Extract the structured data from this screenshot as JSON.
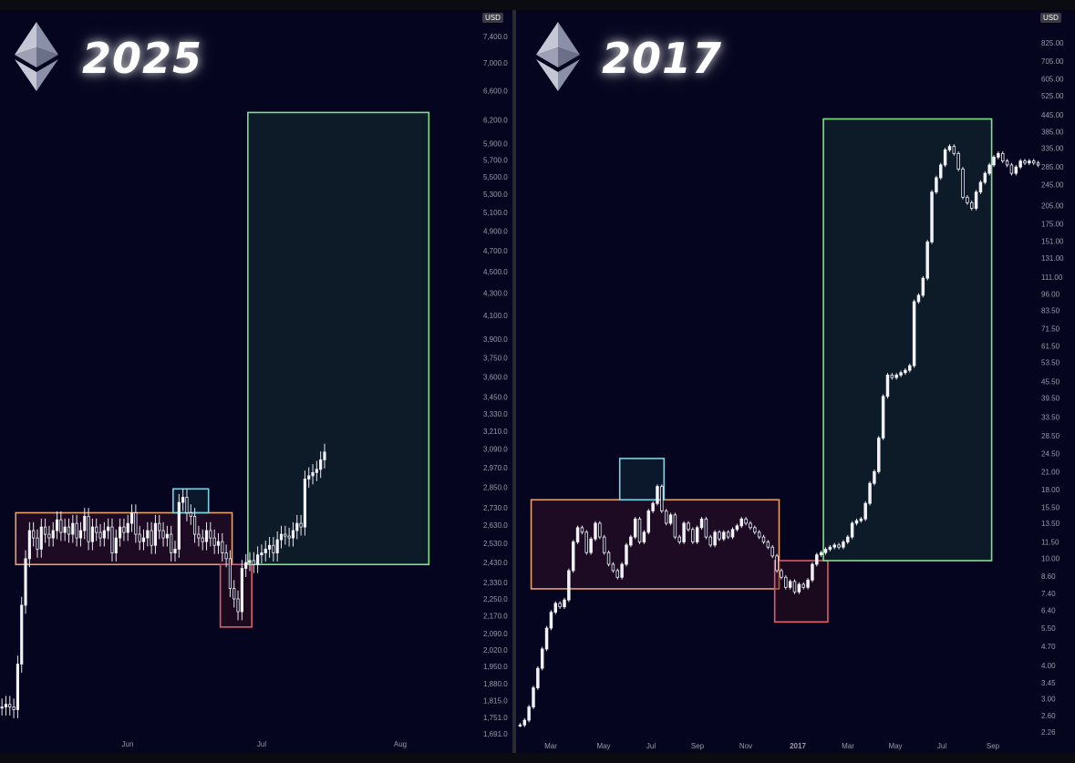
{
  "chart_data": [
    {
      "type": "candlestick",
      "title": "2025",
      "currency_label": "USD",
      "y_ticks": [
        "7,400.0",
        "7,000.0",
        "6,600.0",
        "6,200.0",
        "5,900.0",
        "5,700.0",
        "5,500.0",
        "5,300.0",
        "5,100.0",
        "4,900.0",
        "4,700.0",
        "4,500.0",
        "4,300.0",
        "4,100.0",
        "3,900.0",
        "3,750.0",
        "3,600.0",
        "3,450.0",
        "3,330.0",
        "3,210.0",
        "3,090.0",
        "2,970.0",
        "2,850.0",
        "2,730.0",
        "2,630.0",
        "2,530.0",
        "2,430.0",
        "2,330.0",
        "2,250.0",
        "2,170.0",
        "2,090.0",
        "2,020.0",
        "1,950.0",
        "1,880.0",
        "1,815.0",
        "1,751.0",
        "1,691.0"
      ],
      "x_ticks": [
        "Jun",
        "Jul",
        "Aug"
      ],
      "ylim": [
        1691,
        7400
      ],
      "scale": "log",
      "series_close_approx": [
        1790,
        1800,
        1790,
        1780,
        1960,
        2220,
        2450,
        2600,
        2560,
        2500,
        2620,
        2580,
        2560,
        2600,
        2660,
        2590,
        2620,
        2580,
        2640,
        2560,
        2600,
        2680,
        2540,
        2620,
        2590,
        2560,
        2600,
        2620,
        2480,
        2560,
        2620,
        2590,
        2640,
        2700,
        2580,
        2540,
        2560,
        2600,
        2520,
        2640,
        2600,
        2560,
        2580,
        2480,
        2500,
        2760,
        2790,
        2700,
        2680,
        2580,
        2560,
        2540,
        2600,
        2560,
        2520,
        2540,
        2480,
        2450,
        2300,
        2250,
        2190,
        2400,
        2430,
        2440,
        2420,
        2470,
        2480,
        2500,
        2520,
        2480,
        2550,
        2580,
        2570,
        2560,
        2600,
        2640,
        2620,
        2900,
        2920,
        2940,
        2960,
        3020,
        3070
      ],
      "annotations": [
        {
          "kind": "range-box",
          "color": "#e8a06a",
          "x_from_index": 4,
          "x_to_index": 58,
          "y_from": 2420,
          "y_to": 2700
        },
        {
          "kind": "peak-box",
          "color": "#7fd0e0",
          "x_from_index": 44,
          "x_to_index": 52,
          "y_from": 2700,
          "y_to": 2840
        },
        {
          "kind": "dip-box",
          "color": "#e05a6a",
          "x_from_index": 56,
          "x_to_index": 63,
          "y_from": 2120,
          "y_to": 2420
        },
        {
          "kind": "target-box",
          "color": "#7fe08a",
          "x_from_index": 63,
          "x_to_index": 108,
          "y_from": 2420,
          "y_to": 6300
        }
      ]
    },
    {
      "type": "candlestick",
      "title": "2017",
      "currency_label": "USD",
      "y_ticks": [
        "825.00",
        "705.00",
        "605.00",
        "525.00",
        "445.00",
        "385.00",
        "335.00",
        "285.00",
        "245.00",
        "205.00",
        "175.00",
        "151.00",
        "131.00",
        "111.00",
        "96.00",
        "83.50",
        "71.50",
        "61.50",
        "53.50",
        "45.50",
        "39.50",
        "33.50",
        "28.50",
        "24.50",
        "21.00",
        "18.00",
        "15.50",
        "13.50",
        "11.50",
        "10.00",
        "8.60",
        "7.40",
        "6.40",
        "5.50",
        "4.70",
        "4.00",
        "3.45",
        "3.00",
        "2.60",
        "2.26"
      ],
      "x_ticks": [
        "Mar",
        "May",
        "Jul",
        "Sep",
        "Nov",
        "2017",
        "Mar",
        "May",
        "Jul",
        "Sep"
      ],
      "ylim": [
        2.26,
        825
      ],
      "scale": "log",
      "series_close_approx": [
        2.4,
        2.5,
        2.8,
        3.3,
        3.9,
        4.6,
        5.5,
        6.3,
        6.8,
        6.6,
        7.0,
        9.0,
        11.5,
        13.0,
        12.5,
        10.5,
        11.8,
        13.5,
        12.0,
        10.5,
        9.5,
        9.0,
        8.5,
        9.5,
        11.2,
        12.0,
        14.0,
        11.5,
        12.5,
        15.0,
        16.0,
        18.5,
        15.0,
        13.5,
        14.5,
        12.0,
        11.5,
        13.5,
        12.8,
        11.5,
        13.0,
        14.0,
        12.0,
        11.2,
        12.5,
        11.8,
        12.5,
        12.0,
        12.8,
        13.2,
        14.0,
        13.5,
        13.0,
        12.5,
        12.0,
        11.5,
        11.0,
        10.2,
        9.0,
        8.5,
        7.8,
        8.2,
        7.5,
        8.0,
        7.8,
        8.3,
        9.5,
        10.3,
        10.5,
        10.8,
        11.0,
        11.2,
        11.0,
        11.5,
        12.0,
        13.5,
        13.8,
        14.0,
        16.0,
        19.0,
        21.0,
        28.0,
        40.0,
        48.0,
        47.0,
        48.0,
        49.0,
        50.0,
        52.0,
        90.0,
        95.0,
        110.0,
        150.0,
        230.0,
        260.0,
        290.0,
        330.0,
        340.0,
        320.0,
        280.0,
        220.0,
        210.0,
        200.0,
        230.0,
        250.0,
        270.0,
        290.0,
        310.0,
        320.0,
        300.0,
        290.0,
        270.0,
        285.0,
        300.0,
        295.0,
        300.0,
        295.0,
        290.0
      ],
      "annotations": [
        {
          "kind": "range-box",
          "color": "#e8a06a",
          "x_from_index": 3,
          "x_to_index": 58,
          "y_from": 7.7,
          "y_to": 16.5
        },
        {
          "kind": "peak-box",
          "color": "#7fd0e0",
          "x_from_index": 23,
          "x_to_index": 32,
          "y_from": 16.5,
          "y_to": 23.5
        },
        {
          "kind": "dip-box",
          "color": "#e05a6a",
          "x_from_index": 58,
          "x_to_index": 69,
          "y_from": 5.8,
          "y_to": 9.8
        },
        {
          "kind": "target-box",
          "color": "#7fe08a",
          "x_from_index": 69,
          "x_to_index": 106,
          "y_from": 9.8,
          "y_to": 430
        }
      ]
    }
  ]
}
